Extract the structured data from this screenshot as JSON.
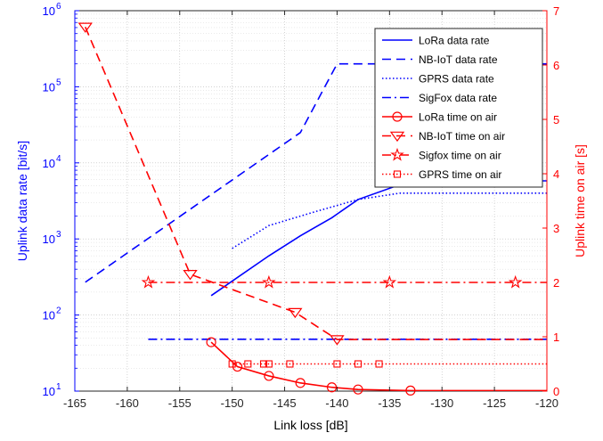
{
  "chart_data": {
    "type": "line",
    "title": "",
    "xlabel": "Link loss [dB]",
    "ylabel_left": "Uplink data rate [bit/s]",
    "ylabel_right": "Uplink time on air [s]",
    "xlim": [
      -165,
      -120
    ],
    "ylim_left": [
      10,
      1000000
    ],
    "yscale_left": "log",
    "ylim_right": [
      0,
      7
    ],
    "grid": true,
    "legend_position": "top-right",
    "x_ticks": [
      {
        "value": -165,
        "label": "-165"
      },
      {
        "value": -160,
        "label": "-160"
      },
      {
        "value": -155,
        "label": "-155"
      },
      {
        "value": -150,
        "label": "-150"
      },
      {
        "value": -145,
        "label": "-145"
      },
      {
        "value": -140,
        "label": "-140"
      },
      {
        "value": -135,
        "label": "-135"
      },
      {
        "value": -130,
        "label": "-130"
      },
      {
        "value": -125,
        "label": "-125"
      },
      {
        "value": -120,
        "label": "-120"
      }
    ],
    "y_left_ticks": [
      {
        "value": 10,
        "base": "10",
        "exp": "1"
      },
      {
        "value": 100,
        "base": "10",
        "exp": "2"
      },
      {
        "value": 1000,
        "base": "10",
        "exp": "3"
      },
      {
        "value": 10000,
        "base": "10",
        "exp": "4"
      },
      {
        "value": 100000,
        "base": "10",
        "exp": "5"
      },
      {
        "value": 1000000,
        "base": "10",
        "exp": "6"
      }
    ],
    "y_right_ticks": [
      {
        "value": 0,
        "label": "0"
      },
      {
        "value": 1,
        "label": "1"
      },
      {
        "value": 2,
        "label": "2"
      },
      {
        "value": 3,
        "label": "3"
      },
      {
        "value": 4,
        "label": "4"
      },
      {
        "value": 5,
        "label": "5"
      },
      {
        "value": 6,
        "label": "6"
      },
      {
        "value": 7,
        "label": "7"
      }
    ],
    "colors": {
      "left_axis": "#0000ff",
      "right_axis": "#ff0000",
      "grid": "#b8b8b8"
    },
    "series": [
      {
        "name": "LoRa data rate",
        "axis": "left",
        "color": "#0000ff",
        "dash": "solid",
        "marker": "none",
        "x": [
          -152,
          -146.5,
          -143.5,
          -140.5,
          -138,
          -133,
          -120
        ],
        "y": [
          180,
          600,
          1100,
          1900,
          3300,
          5800,
          5800
        ]
      },
      {
        "name": "NB-IoT data rate",
        "axis": "left",
        "color": "#0000ff",
        "dash": "dashed",
        "marker": "none",
        "x": [
          -164,
          -143.5,
          -140,
          -120
        ],
        "y": [
          270,
          25000,
          200000,
          200000
        ]
      },
      {
        "name": "GPRS data rate",
        "axis": "left",
        "color": "#0000ff",
        "dash": "dotted",
        "marker": "none",
        "x": [
          -150,
          -146.5,
          -142,
          -138,
          -134,
          -120
        ],
        "y": [
          750,
          1500,
          2300,
          3300,
          4000,
          4000
        ]
      },
      {
        "name": "SigFox data rate",
        "axis": "left",
        "color": "#0000ff",
        "dash": "dashdot",
        "marker": "none",
        "x": [
          -158,
          -120
        ],
        "y": [
          48,
          48
        ]
      },
      {
        "name": "LoRa time on air",
        "axis": "right",
        "color": "#ff0000",
        "dash": "solid",
        "marker": "circle",
        "x": [
          -152,
          -149.5,
          -146.5,
          -143.5,
          -140.5,
          -138,
          -133,
          -120
        ],
        "y": [
          0.9,
          0.45,
          0.28,
          0.15,
          0.07,
          0.03,
          0.01,
          0.01
        ],
        "marker_x": [
          -152,
          -149.5,
          -146.5,
          -143.5,
          -140.5,
          -138,
          -133
        ]
      },
      {
        "name": "NB-IoT time on air",
        "axis": "right",
        "color": "#ff0000",
        "dash": "dashed",
        "marker": "triangle-down",
        "x": [
          -164,
          -154,
          -144,
          -140,
          -120
        ],
        "y": [
          6.7,
          2.15,
          1.45,
          0.95,
          0.95
        ],
        "marker_x": [
          -164,
          -154,
          -144,
          -140
        ]
      },
      {
        "name": "Sigfox time on air",
        "axis": "right",
        "color": "#ff0000",
        "dash": "dashdot",
        "marker": "star",
        "x": [
          -158,
          -120
        ],
        "y": [
          2.0,
          2.0
        ],
        "marker_x": [
          -158,
          -146.5,
          -135,
          -123
        ]
      },
      {
        "name": "GPRS time on air",
        "axis": "right",
        "color": "#ff0000",
        "dash": "dotted",
        "marker": "square",
        "x": [
          -150,
          -120
        ],
        "y": [
          0.5,
          0.5
        ],
        "marker_x": [
          -150,
          -148.5,
          -147,
          -146.5,
          -144.5,
          -140,
          -138,
          -136
        ]
      }
    ]
  }
}
